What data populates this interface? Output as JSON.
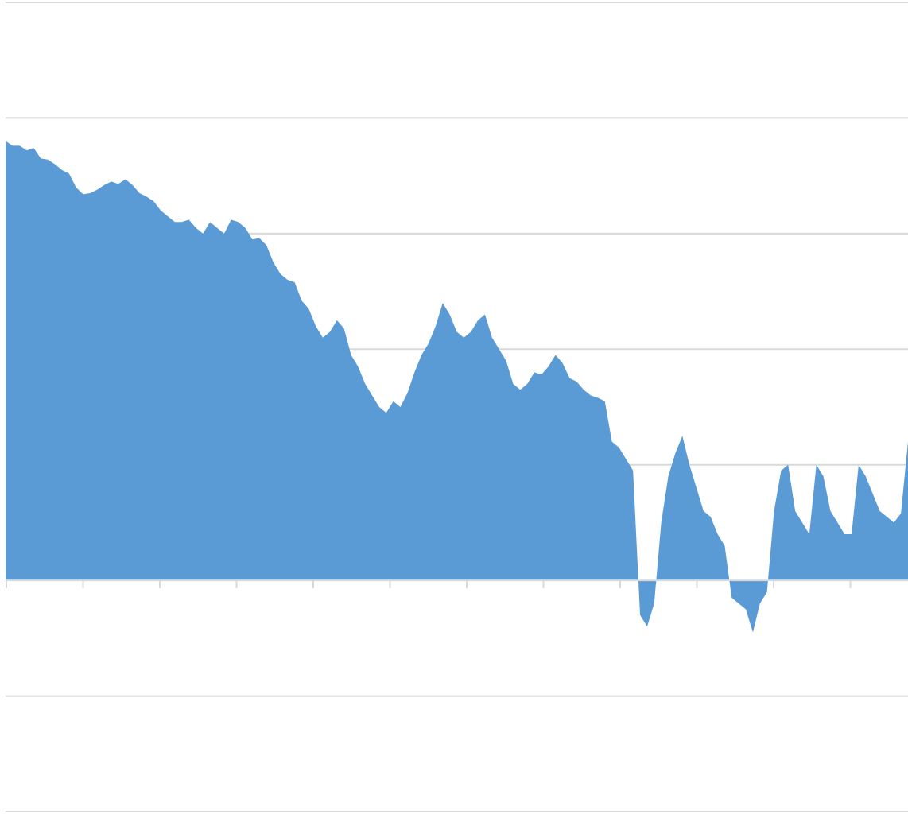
{
  "chart_data": {
    "type": "area",
    "title": "",
    "xlabel": "",
    "ylabel": "",
    "grid": true,
    "legend": "none",
    "ylim": [
      -2,
      5
    ],
    "x_ticks": 10,
    "y_gridlines": [
      5,
      4,
      3,
      2,
      1,
      0,
      -1,
      -2
    ],
    "colors": {
      "fill": "#5b9bd5",
      "grid": "#d9d9d9",
      "axis": "#d9d9d9",
      "background": "#ffffff"
    },
    "series": [
      {
        "values": [
          3.8,
          3.76,
          3.76,
          3.72,
          3.74,
          3.65,
          3.64,
          3.6,
          3.55,
          3.52,
          3.4,
          3.34,
          3.35,
          3.38,
          3.42,
          3.45,
          3.43,
          3.47,
          3.42,
          3.35,
          3.32,
          3.28,
          3.2,
          3.15,
          3.1,
          3.1,
          3.12,
          3.05,
          3.0,
          3.1,
          3.05,
          3.0,
          3.12,
          3.1,
          3.05,
          2.95,
          2.96,
          2.9,
          2.75,
          2.65,
          2.6,
          2.58,
          2.42,
          2.35,
          2.2,
          2.1,
          2.15,
          2.25,
          2.18,
          1.95,
          1.85,
          1.7,
          1.6,
          1.5,
          1.45,
          1.55,
          1.5,
          1.62,
          1.8,
          1.95,
          2.05,
          2.2,
          2.4,
          2.3,
          2.15,
          2.1,
          2.15,
          2.25,
          2.3,
          2.1,
          2.0,
          1.9,
          1.7,
          1.65,
          1.7,
          1.8,
          1.78,
          1.85,
          1.95,
          1.88,
          1.75,
          1.72,
          1.65,
          1.6,
          1.58,
          1.55,
          1.2,
          1.15,
          1.05,
          0.95,
          -0.3,
          -0.4,
          -0.2,
          0.5,
          0.9,
          1.1,
          1.25,
          1.0,
          0.8,
          0.6,
          0.55,
          0.4,
          0.3,
          -0.15,
          -0.2,
          -0.25,
          -0.45,
          -0.2,
          -0.1,
          0.6,
          0.95,
          1.0,
          0.6,
          0.5,
          0.4,
          1.0,
          0.9,
          0.6,
          0.5,
          0.4,
          0.4,
          1.0,
          0.9,
          0.75,
          0.6,
          0.55,
          0.5,
          0.58,
          1.2
        ]
      }
    ]
  }
}
